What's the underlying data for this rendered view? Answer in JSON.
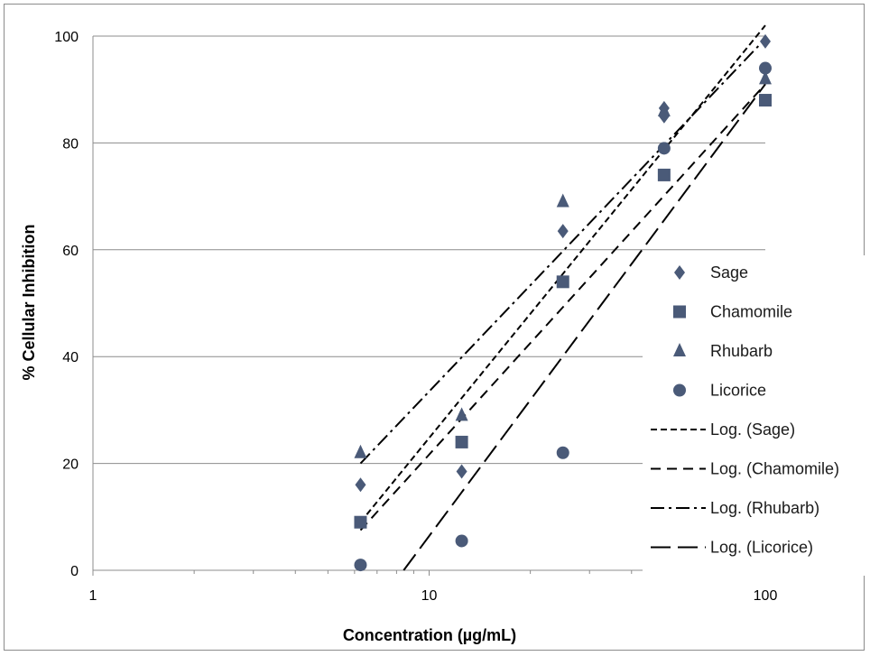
{
  "chart_data": {
    "type": "scatter",
    "xlabel": "Concentration (µg/mL)",
    "ylabel": "% Cellular  Inhibition",
    "xscale": "log",
    "xlim": [
      1,
      100
    ],
    "ylim": [
      0,
      100
    ],
    "xticks": [
      1,
      10,
      100
    ],
    "xtick_labels": [
      "1",
      "10",
      "100"
    ],
    "yticks": [
      0,
      20,
      40,
      60,
      80,
      100
    ],
    "ytick_labels": [
      "0",
      "20",
      "40",
      "60",
      "80",
      "100"
    ],
    "grid": "horizontal",
    "legend_position": "right",
    "marker_color": "#4a5a78",
    "series": [
      {
        "name": "Sage",
        "marker": "diamond",
        "x": [
          6.25,
          12.5,
          25,
          50,
          50,
          100
        ],
        "y": [
          16,
          18.5,
          63.5,
          85,
          86.5,
          99
        ]
      },
      {
        "name": "Chamomile",
        "marker": "square",
        "x": [
          6.25,
          12.5,
          25,
          50,
          100
        ],
        "y": [
          9,
          24,
          54,
          74,
          88
        ]
      },
      {
        "name": "Rhubarb",
        "marker": "triangle",
        "x": [
          6.25,
          12.5,
          25,
          50,
          100
        ],
        "y": [
          22,
          29,
          69,
          86,
          92
        ]
      },
      {
        "name": "Licorice",
        "marker": "circle",
        "x": [
          6.25,
          12.5,
          25,
          50,
          100
        ],
        "y": [
          1,
          5.5,
          22,
          79,
          94
        ]
      }
    ],
    "trendlines": [
      {
        "name": "Log. (Sage)",
        "type": "log",
        "dash": "7,4",
        "x_range": [
          6.25,
          100
        ],
        "y_range": [
          9,
          102
        ]
      },
      {
        "name": "Log. (Chamomile)",
        "type": "log",
        "dash": "11,7",
        "x_range": [
          6.25,
          100
        ],
        "y_range": [
          7.5,
          91
        ]
      },
      {
        "name": "Log. (Rhubarb)",
        "type": "log",
        "dash": "15,5,3,5",
        "x_range": [
          6.25,
          100
        ],
        "y_range": [
          20,
          99.5
        ]
      },
      {
        "name": "Log. (Licorice)",
        "type": "log",
        "dash": "22,8",
        "x_range": [
          8.4,
          100
        ],
        "y_range": [
          0,
          91
        ]
      }
    ]
  }
}
